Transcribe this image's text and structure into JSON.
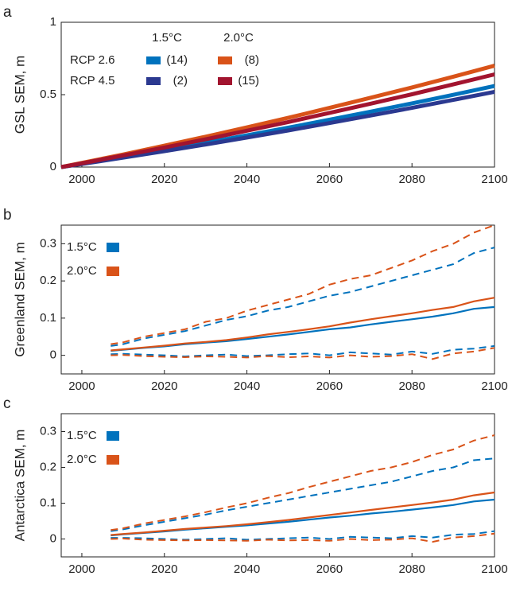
{
  "chart_data": [
    {
      "type": "line",
      "panel": "a",
      "ylabel": "GSL SEM, m",
      "xlim": [
        1995,
        2100
      ],
      "xticks": [
        2000,
        2020,
        2040,
        2060,
        2080,
        2100
      ],
      "ylim": [
        0,
        1
      ],
      "yticks": [
        0,
        0.5,
        1
      ],
      "legend": {
        "columns": [
          "1.5°C",
          "2.0°C"
        ],
        "rows": [
          "RCP 2.6",
          "RCP 4.5"
        ]
      },
      "x": [
        1995,
        2000,
        2010,
        2020,
        2030,
        2040,
        2050,
        2060,
        2070,
        2080,
        2090,
        2100
      ],
      "series": [
        {
          "name": "(14)",
          "color": "#0072bd",
          "values": [
            0,
            0.023,
            0.07,
            0.118,
            0.168,
            0.219,
            0.272,
            0.327,
            0.383,
            0.44,
            0.499,
            0.56
          ]
        },
        {
          "name": "(8)",
          "color": "#d95319",
          "values": [
            0,
            0.029,
            0.087,
            0.148,
            0.21,
            0.274,
            0.34,
            0.409,
            0.479,
            0.55,
            0.624,
            0.7
          ]
        },
        {
          "name": "(2)",
          "color": "#2b3990",
          "values": [
            0,
            0.021,
            0.065,
            0.11,
            0.156,
            0.204,
            0.253,
            0.304,
            0.356,
            0.409,
            0.464,
            0.52
          ]
        },
        {
          "name": "(15)",
          "color": "#a2142f",
          "values": [
            0,
            0.026,
            0.08,
            0.135,
            0.192,
            0.251,
            0.311,
            0.374,
            0.438,
            0.503,
            0.571,
            0.64
          ]
        }
      ]
    },
    {
      "type": "line",
      "panel": "b",
      "ylabel": "Greenland SEM, m",
      "xlim": [
        1995,
        2100
      ],
      "xticks": [
        2000,
        2020,
        2040,
        2060,
        2080,
        2100
      ],
      "ylim": [
        -0.05,
        0.35
      ],
      "yticks": [
        0,
        0.1,
        0.2,
        0.3
      ],
      "x": [
        2007,
        2010,
        2015,
        2020,
        2025,
        2030,
        2035,
        2040,
        2045,
        2050,
        2055,
        2060,
        2065,
        2070,
        2075,
        2080,
        2085,
        2090,
        2095,
        2100
      ],
      "series": [
        {
          "name": "1.5°C",
          "color": "#0072bd",
          "values": [
            0.012,
            0.015,
            0.02,
            0.024,
            0.03,
            0.034,
            0.038,
            0.044,
            0.05,
            0.056,
            0.063,
            0.07,
            0.075,
            0.083,
            0.09,
            0.097,
            0.104,
            0.113,
            0.125,
            0.13
          ],
          "upper": [
            0.025,
            0.03,
            0.045,
            0.055,
            0.065,
            0.08,
            0.095,
            0.105,
            0.12,
            0.13,
            0.145,
            0.16,
            0.17,
            0.185,
            0.2,
            0.215,
            0.23,
            0.245,
            0.275,
            0.29
          ],
          "lower": [
            0.003,
            0.004,
            0.002,
            0.0,
            -0.003,
            0.0,
            0.002,
            -0.002,
            0.0,
            0.003,
            0.005,
            0.0,
            0.008,
            0.005,
            0.002,
            0.01,
            0.004,
            0.015,
            0.018,
            0.025
          ]
        },
        {
          "name": "2.0°C",
          "color": "#d95319",
          "values": [
            0.013,
            0.016,
            0.021,
            0.026,
            0.032,
            0.036,
            0.041,
            0.048,
            0.056,
            0.063,
            0.07,
            0.078,
            0.088,
            0.097,
            0.105,
            0.113,
            0.122,
            0.13,
            0.145,
            0.155
          ],
          "upper": [
            0.03,
            0.035,
            0.05,
            0.06,
            0.07,
            0.09,
            0.1,
            0.12,
            0.135,
            0.15,
            0.165,
            0.19,
            0.205,
            0.215,
            0.235,
            0.255,
            0.28,
            0.3,
            0.33,
            0.35
          ],
          "lower": [
            0.0,
            0.001,
            -0.002,
            -0.004,
            -0.005,
            -0.003,
            -0.004,
            -0.006,
            -0.002,
            -0.005,
            -0.003,
            -0.006,
            0.0,
            -0.004,
            -0.002,
            0.003,
            -0.01,
            0.005,
            0.01,
            0.02
          ]
        }
      ]
    },
    {
      "type": "line",
      "panel": "c",
      "ylabel": "Antarctica SEM, m",
      "xlim": [
        1995,
        2100
      ],
      "xticks": [
        2000,
        2020,
        2040,
        2060,
        2080,
        2100
      ],
      "ylim": [
        -0.05,
        0.35
      ],
      "yticks": [
        0,
        0.1,
        0.2,
        0.3
      ],
      "x": [
        2007,
        2010,
        2015,
        2020,
        2025,
        2030,
        2035,
        2040,
        2045,
        2050,
        2055,
        2060,
        2065,
        2070,
        2075,
        2080,
        2085,
        2090,
        2095,
        2100
      ],
      "series": [
        {
          "name": "1.5°C",
          "color": "#0072bd",
          "values": [
            0.01,
            0.013,
            0.017,
            0.021,
            0.026,
            0.03,
            0.034,
            0.038,
            0.043,
            0.048,
            0.054,
            0.06,
            0.065,
            0.071,
            0.076,
            0.082,
            0.088,
            0.095,
            0.105,
            0.11
          ],
          "upper": [
            0.022,
            0.027,
            0.038,
            0.048,
            0.058,
            0.068,
            0.08,
            0.09,
            0.1,
            0.11,
            0.12,
            0.13,
            0.14,
            0.15,
            0.16,
            0.175,
            0.19,
            0.2,
            0.22,
            0.225
          ],
          "lower": [
            0.003,
            0.003,
            0.002,
            0.0,
            -0.002,
            0.0,
            0.002,
            -0.002,
            0.0,
            0.002,
            0.004,
            0.0,
            0.006,
            0.004,
            0.002,
            0.008,
            0.004,
            0.012,
            0.014,
            0.022
          ]
        },
        {
          "name": "2.0°C",
          "color": "#d95319",
          "values": [
            0.011,
            0.014,
            0.018,
            0.023,
            0.028,
            0.032,
            0.036,
            0.041,
            0.047,
            0.053,
            0.06,
            0.067,
            0.074,
            0.081,
            0.088,
            0.095,
            0.102,
            0.11,
            0.122,
            0.13
          ],
          "upper": [
            0.025,
            0.03,
            0.043,
            0.053,
            0.063,
            0.075,
            0.088,
            0.1,
            0.115,
            0.128,
            0.145,
            0.16,
            0.175,
            0.19,
            0.2,
            0.215,
            0.235,
            0.25,
            0.275,
            0.29
          ],
          "lower": [
            0.0,
            0.001,
            -0.002,
            -0.003,
            -0.004,
            -0.003,
            -0.004,
            -0.005,
            -0.002,
            -0.004,
            -0.003,
            -0.005,
            0.0,
            -0.003,
            -0.002,
            0.002,
            -0.008,
            0.004,
            0.008,
            0.015
          ]
        }
      ]
    }
  ]
}
